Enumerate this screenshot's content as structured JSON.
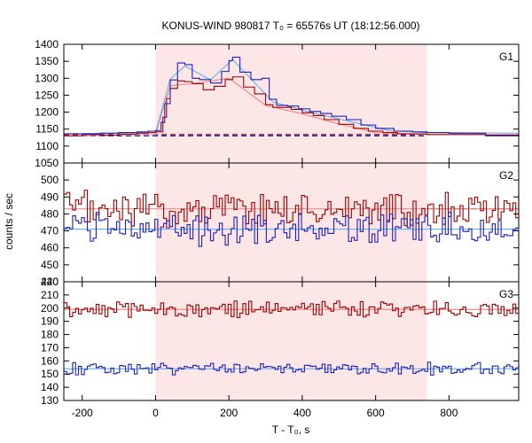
{
  "chart_data": {
    "type": "line",
    "title": "KONUS-WIND 980817 T₀ = 65576s UT (18:12:56.000)",
    "xlabel": "T - T₀, s",
    "ylabel": "counts / sec",
    "xlim": [
      -250,
      990
    ],
    "xticks": [
      "-200",
      "0",
      "200",
      "400",
      "600",
      "800"
    ],
    "highlight_interval": {
      "x0": 0,
      "x1": 740,
      "color": "#fde6e6"
    },
    "colors": {
      "red": "#a00000",
      "blue": "#1f1fbf",
      "fit_red": "#f28b8b",
      "fit_blue": "#6fb7e8",
      "dashed_red": "#a00000",
      "dashed_blue": "#1f1fbf"
    },
    "panels": [
      {
        "name": "G1",
        "ylim": [
          1050,
          1400
        ],
        "yticks": [
          "1050",
          "1100",
          "1150",
          "1200",
          "1250",
          "1300",
          "1350",
          "1400"
        ],
        "series": [
          {
            "color": "red",
            "points": [
              [
                -250,
                1130
              ],
              [
                -200,
                1134
              ],
              [
                -150,
                1132
              ],
              [
                -100,
                1135
              ],
              [
                -50,
                1138
              ],
              [
                -20,
                1140
              ],
              [
                0,
                1142
              ],
              [
                20,
                1185
              ],
              [
                30,
                1240
              ],
              [
                40,
                1270
              ],
              [
                60,
                1292
              ],
              [
                80,
                1290
              ],
              [
                100,
                1284
              ],
              [
                130,
                1266
              ],
              [
                160,
                1276
              ],
              [
                190,
                1296
              ],
              [
                210,
                1304
              ],
              [
                240,
                1274
              ],
              [
                270,
                1254
              ],
              [
                300,
                1222
              ],
              [
                320,
                1214
              ],
              [
                340,
                1214
              ],
              [
                370,
                1208
              ],
              [
                400,
                1198
              ],
              [
                430,
                1190
              ],
              [
                460,
                1178
              ],
              [
                500,
                1164
              ],
              [
                540,
                1152
              ],
              [
                580,
                1144
              ],
              [
                620,
                1140
              ],
              [
                660,
                1136
              ],
              [
                700,
                1136
              ],
              [
                740,
                1134
              ],
              [
                800,
                1134
              ],
              [
                900,
                1132
              ],
              [
                990,
                1136
              ]
            ]
          },
          {
            "color": "blue",
            "points": [
              [
                -250,
                1136
              ],
              [
                -200,
                1136
              ],
              [
                -150,
                1138
              ],
              [
                -100,
                1140
              ],
              [
                -50,
                1142
              ],
              [
                -20,
                1144
              ],
              [
                0,
                1146
              ],
              [
                15,
                1170
              ],
              [
                25,
                1225
              ],
              [
                40,
                1295
              ],
              [
                60,
                1345
              ],
              [
                80,
                1340
              ],
              [
                100,
                1300
              ],
              [
                120,
                1296
              ],
              [
                150,
                1286
              ],
              [
                180,
                1320
              ],
              [
                200,
                1352
              ],
              [
                210,
                1362
              ],
              [
                230,
                1318
              ],
              [
                260,
                1296
              ],
              [
                290,
                1300
              ],
              [
                310,
                1238
              ],
              [
                330,
                1220
              ],
              [
                360,
                1218
              ],
              [
                390,
                1210
              ],
              [
                420,
                1202
              ],
              [
                450,
                1196
              ],
              [
                480,
                1188
              ],
              [
                520,
                1178
              ],
              [
                560,
                1162
              ],
              [
                600,
                1152
              ],
              [
                650,
                1144
              ],
              [
                700,
                1142
              ],
              [
                740,
                1140
              ],
              [
                800,
                1138
              ],
              [
                900,
                1130
              ],
              [
                990,
                1138
              ]
            ]
          }
        ],
        "fits": [
          {
            "color": "fit_red",
            "points": [
              [
                -250,
                1130
              ],
              [
                0,
                1134
              ],
              [
                40,
                1278
              ],
              [
                100,
                1284
              ],
              [
                200,
                1300
              ],
              [
                300,
                1220
              ],
              [
                400,
                1195
              ],
              [
                500,
                1165
              ],
              [
                600,
                1140
              ],
              [
                740,
                1134
              ],
              [
                990,
                1134
              ]
            ]
          },
          {
            "color": "fit_blue",
            "points": [
              [
                -250,
                1136
              ],
              [
                0,
                1140
              ],
              [
                40,
                1298
              ],
              [
                80,
                1336
              ],
              [
                150,
                1295
              ],
              [
                210,
                1355
              ],
              [
                320,
                1230
              ],
              [
                420,
                1200
              ],
              [
                520,
                1175
              ],
              [
                640,
                1145
              ],
              [
                740,
                1140
              ],
              [
                990,
                1138
              ]
            ]
          }
        ],
        "dashed": [
          {
            "color": "dashed_red",
            "y": 1134,
            "x0": -250,
            "x1": 740
          },
          {
            "color": "dashed_blue",
            "y": 1130,
            "x0": -250,
            "x1": 740
          }
        ]
      },
      {
        "name": "G2",
        "ylim": [
          440,
          510
        ],
        "yticks": [
          "440",
          "450",
          "460",
          "470",
          "480",
          "490",
          "500"
        ],
        "series": [
          {
            "color": "red",
            "mean": 483,
            "amp": 9,
            "points": []
          },
          {
            "color": "blue",
            "mean": 471,
            "amp": 8,
            "points": []
          }
        ],
        "fits": [
          {
            "color": "fit_red",
            "points": [
              [
                -250,
                483
              ],
              [
                990,
                483
              ]
            ]
          },
          {
            "color": "fit_blue",
            "points": [
              [
                -250,
                471
              ],
              [
                990,
                471
              ]
            ]
          }
        ],
        "dashed": [
          {
            "color": "dashed_red",
            "y": 483,
            "x0": 740,
            "x1": 990
          }
        ]
      },
      {
        "name": "G3",
        "ylim": [
          130,
          220
        ],
        "yticks": [
          "130",
          "140",
          "150",
          "160",
          "170",
          "180",
          "190",
          "200",
          "210",
          "220"
        ],
        "series": [
          {
            "color": "red",
            "mean": 199,
            "amp": 5,
            "points": []
          },
          {
            "color": "blue",
            "mean": 154,
            "amp": 4,
            "points": []
          }
        ],
        "fits": [
          {
            "color": "fit_red",
            "points": [
              [
                -250,
                199
              ],
              [
                990,
                199
              ]
            ]
          },
          {
            "color": "fit_blue",
            "points": [
              [
                -250,
                154
              ],
              [
                990,
                154
              ]
            ]
          }
        ],
        "dashed": []
      }
    ]
  }
}
